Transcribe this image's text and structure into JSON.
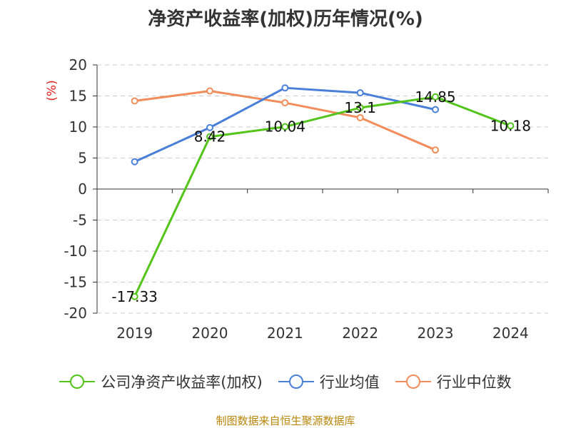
{
  "chart_data": {
    "type": "line",
    "title": "净资产收益率(加权)历年情况(%)",
    "ylabel": "(%)",
    "xlabel": "",
    "categories": [
      "2019",
      "2020",
      "2021",
      "2022",
      "2023",
      "2024"
    ],
    "ylim": [
      -20,
      20
    ],
    "yticks": [
      20,
      15,
      10,
      5,
      0,
      -5,
      -10,
      -15,
      -20
    ],
    "grid": true,
    "legend_position": "bottom",
    "series": [
      {
        "name": "公司净资产收益率(加权)",
        "color": "#52c41a",
        "values": [
          -17.33,
          8.42,
          10.04,
          13.1,
          14.85,
          10.18
        ],
        "labels": [
          "-17.33",
          "8.42",
          "10.04",
          "13.1",
          "14.85",
          "10.18"
        ]
      },
      {
        "name": "行业均值",
        "color": "#4a7fd9",
        "values": [
          4.4,
          9.9,
          16.3,
          15.5,
          12.8,
          null
        ]
      },
      {
        "name": "行业中位数",
        "color": "#f28c5a",
        "values": [
          14.2,
          15.8,
          13.9,
          11.5,
          6.3,
          null
        ]
      }
    ]
  },
  "source": "制图数据来自恒生聚源数据库"
}
